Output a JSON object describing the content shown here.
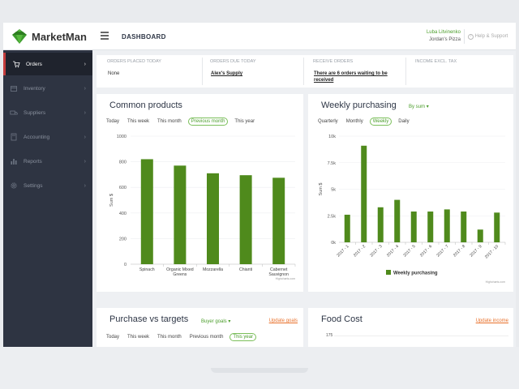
{
  "app": {
    "name": "MarketMan"
  },
  "header": {
    "title": "DASHBOARD",
    "user_name": "Luba Litvinenko",
    "user_org": "Jordan's Pizza",
    "help_label": "Help & Support"
  },
  "sidebar": {
    "items": [
      {
        "label": "Orders",
        "icon": "cart-icon"
      },
      {
        "label": "Inventory",
        "icon": "box-icon"
      },
      {
        "label": "Suppliers",
        "icon": "truck-icon"
      },
      {
        "label": "Accounting",
        "icon": "calculator-icon"
      },
      {
        "label": "Reports",
        "icon": "bar-chart-icon"
      },
      {
        "label": "Settings",
        "icon": "gear-icon"
      }
    ]
  },
  "summary": [
    {
      "label": "ORDERS PLACED TODAY",
      "value": "None"
    },
    {
      "label": "ORDERS DUE TODAY",
      "value": "Alex's Supply"
    },
    {
      "label": "RECEIVE ORDERS",
      "value": "There are 6 orders waiting to be received"
    },
    {
      "label": "INCOME EXCL. TAX",
      "value": ""
    }
  ],
  "common_products": {
    "title": "Common products",
    "tabs": [
      "Today",
      "This week",
      "This month",
      "Previous month",
      "This year"
    ],
    "active_tab": "Previous month",
    "credit": "Highcharts.com"
  },
  "weekly_purchasing": {
    "title": "Weekly purchasing",
    "dropdown": "By sum",
    "tabs": [
      "Quarterly",
      "Monthly",
      "Weekly",
      "Daily"
    ],
    "active_tab": "Weekly",
    "credit": "Highcharts.com"
  },
  "purchase_vs_targets": {
    "title": "Purchase vs targets",
    "dropdown": "Buyer goals",
    "link": "Update goals",
    "tabs": [
      "Today",
      "This week",
      "This month",
      "Previous month",
      "This year"
    ],
    "active_tab": "This year"
  },
  "food_cost": {
    "title": "Food Cost",
    "link": "Update income",
    "first_tick": "175"
  },
  "colors": {
    "accent": "#4a9d2a",
    "bar": "#4f8a1c",
    "sidebar": "#2e3442",
    "link": "#e8702a"
  },
  "chart_data": [
    {
      "type": "bar",
      "categories": [
        "Spinach",
        "Organic Mixed Greens",
        "Mozzarella",
        "Chianti",
        "Cabernet Sauvignon"
      ],
      "values": [
        820,
        770,
        710,
        695,
        675
      ],
      "ylabel": "Sum $",
      "ylim": [
        0,
        1000
      ],
      "yticks": [
        "0",
        "200",
        "400",
        "600",
        "800",
        "1000"
      ]
    },
    {
      "type": "bar",
      "categories": [
        "2017 - 1",
        "2017 - 2",
        "2017 - 3",
        "2017 - 4",
        "2017 - 5",
        "2017 - 6",
        "2017 - 7",
        "2017 - 8",
        "2017 - 9",
        "2017 - 10"
      ],
      "series": [
        {
          "name": "Weekly purchasing",
          "values": [
            2600,
            9100,
            3300,
            4000,
            2900,
            2900,
            3100,
            2900,
            1200,
            2800
          ]
        }
      ],
      "ylabel": "Sum $",
      "ylim": [
        0,
        10000
      ],
      "yticks": [
        "0k",
        "2.5k",
        "5k",
        "7.5k",
        "10k"
      ]
    }
  ]
}
